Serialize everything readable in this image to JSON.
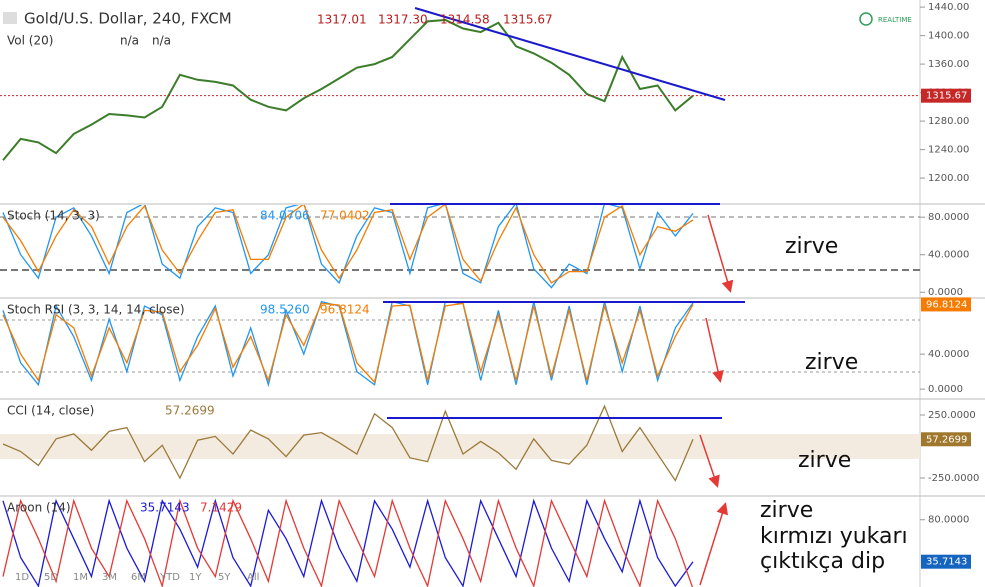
{
  "header": {
    "symbol": "Gold/U.S. Dollar, 240, FXCM",
    "ohlc": [
      "1317.01",
      "1317.30",
      "1314.58",
      "1315.67"
    ],
    "volume": "Vol (20)",
    "volume_values": [
      "n/a",
      "n/a"
    ],
    "realtime": "REALTIME"
  },
  "panes": [
    {
      "ylim": [
        1165,
        1450
      ],
      "yticks": [
        {
          "value": 1440,
          "label": "1440.00"
        },
        {
          "value": 1400,
          "label": "1400.00"
        },
        {
          "value": 1360,
          "label": "1360.00"
        },
        {
          "value": 1320,
          "label": "1320.00"
        },
        {
          "value": 1280,
          "label": "1280.00"
        },
        {
          "value": 1240,
          "label": "1240.00"
        },
        {
          "value": 1200,
          "label": "1200.00"
        }
      ],
      "last": {
        "value": 1315.67,
        "label": "1315.67",
        "color": "#c62828"
      },
      "series": [
        {
          "color": "#3b7d2a",
          "values": [
            1225,
            1255,
            1250,
            1235,
            1262,
            1275,
            1290,
            1288,
            1285,
            1300,
            1345,
            1338,
            1335,
            1330,
            1310,
            1300,
            1295,
            1312,
            1325,
            1340,
            1355,
            1360,
            1370,
            1395,
            1420,
            1422,
            1410,
            1405,
            1418,
            1385,
            1375,
            1362,
            1345,
            1318,
            1308,
            1370,
            1325,
            1330,
            1295,
            1315.67
          ]
        }
      ]
    },
    {
      "title": "Stoch (14, 3, 3)",
      "readouts": [
        "84.0706",
        "77.0402"
      ],
      "ylim": [
        -4,
        93
      ],
      "yticks": [
        {
          "value": 80,
          "label": "80.0000"
        },
        {
          "value": 40,
          "label": "40.0000"
        },
        {
          "value": 0,
          "label": "0.0000"
        }
      ],
      "series": [
        {
          "color": "#2196f3",
          "values": [
            85,
            40,
            15,
            80,
            90,
            60,
            20,
            85,
            95,
            30,
            15,
            70,
            90,
            85,
            20,
            40,
            90,
            95,
            30,
            10,
            60,
            90,
            85,
            20,
            90,
            95,
            20,
            10,
            70,
            95,
            25,
            5,
            30,
            20,
            95,
            90,
            25,
            85,
            60,
            84.07
          ]
        },
        {
          "color": "#f57c00",
          "values": [
            80,
            55,
            22,
            60,
            88,
            70,
            30,
            70,
            92,
            45,
            20,
            55,
            85,
            88,
            35,
            35,
            80,
            94,
            45,
            15,
            45,
            85,
            88,
            35,
            80,
            94,
            35,
            12,
            55,
            90,
            40,
            10,
            22,
            22,
            80,
            92,
            40,
            70,
            65,
            77.04
          ]
        }
      ]
    },
    {
      "title": "Stoch RSI (3, 3, 14, 14, close)",
      "readouts": [
        "98.5260",
        "96.8124"
      ],
      "ylim": [
        -9,
        103
      ],
      "yticks": [
        {
          "value": 40,
          "label": "40.0000"
        },
        {
          "value": 0,
          "label": "0.0000"
        }
      ],
      "last": {
        "value": 96.81,
        "label": "96.8124",
        "color": "#f57c00"
      },
      "series": [
        {
          "color": "#2196f3",
          "values": [
            90,
            30,
            5,
            95,
            60,
            10,
            80,
            20,
            95,
            85,
            10,
            60,
            95,
            15,
            70,
            5,
            90,
            40,
            100,
            95,
            20,
            5,
            100,
            95,
            5,
            100,
            98,
            10,
            90,
            5,
            100,
            10,
            95,
            5,
            100,
            20,
            95,
            10,
            70,
            98.53
          ]
        },
        {
          "color": "#f57c00",
          "values": [
            85,
            40,
            10,
            85,
            70,
            15,
            70,
            30,
            90,
            88,
            20,
            50,
            92,
            25,
            60,
            10,
            85,
            50,
            98,
            96,
            30,
            8,
            95,
            96,
            10,
            95,
            98,
            20,
            85,
            10,
            95,
            15,
            90,
            10,
            95,
            30,
            90,
            15,
            60,
            96.81
          ]
        }
      ]
    },
    {
      "title": "CCI (14, close)",
      "readouts": [
        "57.2699"
      ],
      "ylim": [
        -377,
        369
      ],
      "yticks": [
        {
          "value": 250,
          "label": "250.0000"
        },
        {
          "value": -250,
          "label": "-250.0000"
        }
      ],
      "last": {
        "value": 57.27,
        "label": "57.2699",
        "color": "#a0782d"
      },
      "series": [
        {
          "color": "#9c7a3a",
          "values": [
            20,
            -40,
            -150,
            60,
            100,
            -30,
            120,
            150,
            -120,
            10,
            -250,
            50,
            80,
            -60,
            130,
            60,
            -80,
            90,
            110,
            30,
            -60,
            260,
            150,
            -90,
            -120,
            280,
            -60,
            40,
            -50,
            -180,
            60,
            -110,
            -140,
            10,
            320,
            -40,
            150,
            -60,
            -270,
            57.27
          ]
        }
      ]
    },
    {
      "title": "Aroon (14)",
      "readouts": [
        "35.7143",
        "7.1429"
      ],
      "ylim": [
        9,
        104
      ],
      "yticks": [
        {
          "value": 80,
          "label": "80.0000"
        }
      ],
      "last": {
        "value": 35.71,
        "label": "35.7143",
        "color": "#1565c0"
      },
      "series": [
        {
          "color": "#1a1ad8",
          "values": [
            100,
            40,
            10,
            100,
            60,
            20,
            100,
            50,
            15,
            100,
            70,
            30,
            100,
            40,
            10,
            90,
            60,
            20,
            100,
            50,
            15,
            100,
            70,
            30,
            100,
            40,
            10,
            100,
            60,
            20,
            100,
            50,
            15,
            100,
            60,
            25,
            100,
            40,
            10,
            35.71
          ]
        },
        {
          "color": "#e53935",
          "values": [
            20,
            100,
            60,
            15,
            100,
            50,
            20,
            100,
            60,
            10,
            100,
            50,
            20,
            100,
            60,
            15,
            100,
            50,
            10,
            100,
            60,
            20,
            100,
            50,
            10,
            100,
            60,
            15,
            100,
            50,
            10,
            100,
            60,
            20,
            100,
            50,
            10,
            100,
            60,
            7.14
          ]
        }
      ]
    }
  ],
  "annotations": [
    "zirve",
    "zirve",
    "zirve",
    "zirve",
    "kırmızı yukarı",
    "çıktıkça dip"
  ],
  "timeframes": [
    "1D",
    "5D",
    "1M",
    "3M",
    "6M",
    "YTD",
    "1Y",
    "5Y",
    "All"
  ]
}
